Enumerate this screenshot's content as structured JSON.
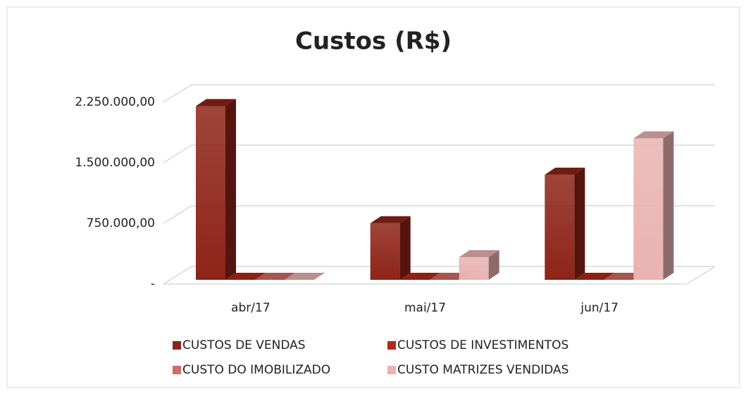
{
  "chart_data": {
    "type": "bar3d",
    "title": "Custos (R$)",
    "categories": [
      "abr/17",
      "mai/17",
      "jun/17"
    ],
    "series": [
      {
        "name": "CUSTOS DE VENDAS",
        "color": "#8e2418",
        "values": [
          2150000,
          700000,
          1300000
        ]
      },
      {
        "name": "CUSTOS DE INVESTIMENTOS",
        "color": "#b3291b",
        "values": [
          0,
          0,
          0
        ]
      },
      {
        "name": "CUSTO DO IMOBILIZADO",
        "color": "#d36a66",
        "values": [
          0,
          0,
          0
        ]
      },
      {
        "name": "CUSTO MATRIZES VENDIDAS",
        "color": "#e9b3b1",
        "values": [
          0,
          280000,
          1750000
        ]
      }
    ],
    "ylim": [
      0,
      2250000
    ],
    "yticks": [
      {
        "value": 0,
        "label": "-"
      },
      {
        "value": 750000,
        "label": "750.000,00"
      },
      {
        "value": 1500000,
        "label": "1.500.000,00"
      },
      {
        "value": 2250000,
        "label": "2.250.000,00"
      }
    ],
    "grid": true,
    "legend": "bottom"
  }
}
